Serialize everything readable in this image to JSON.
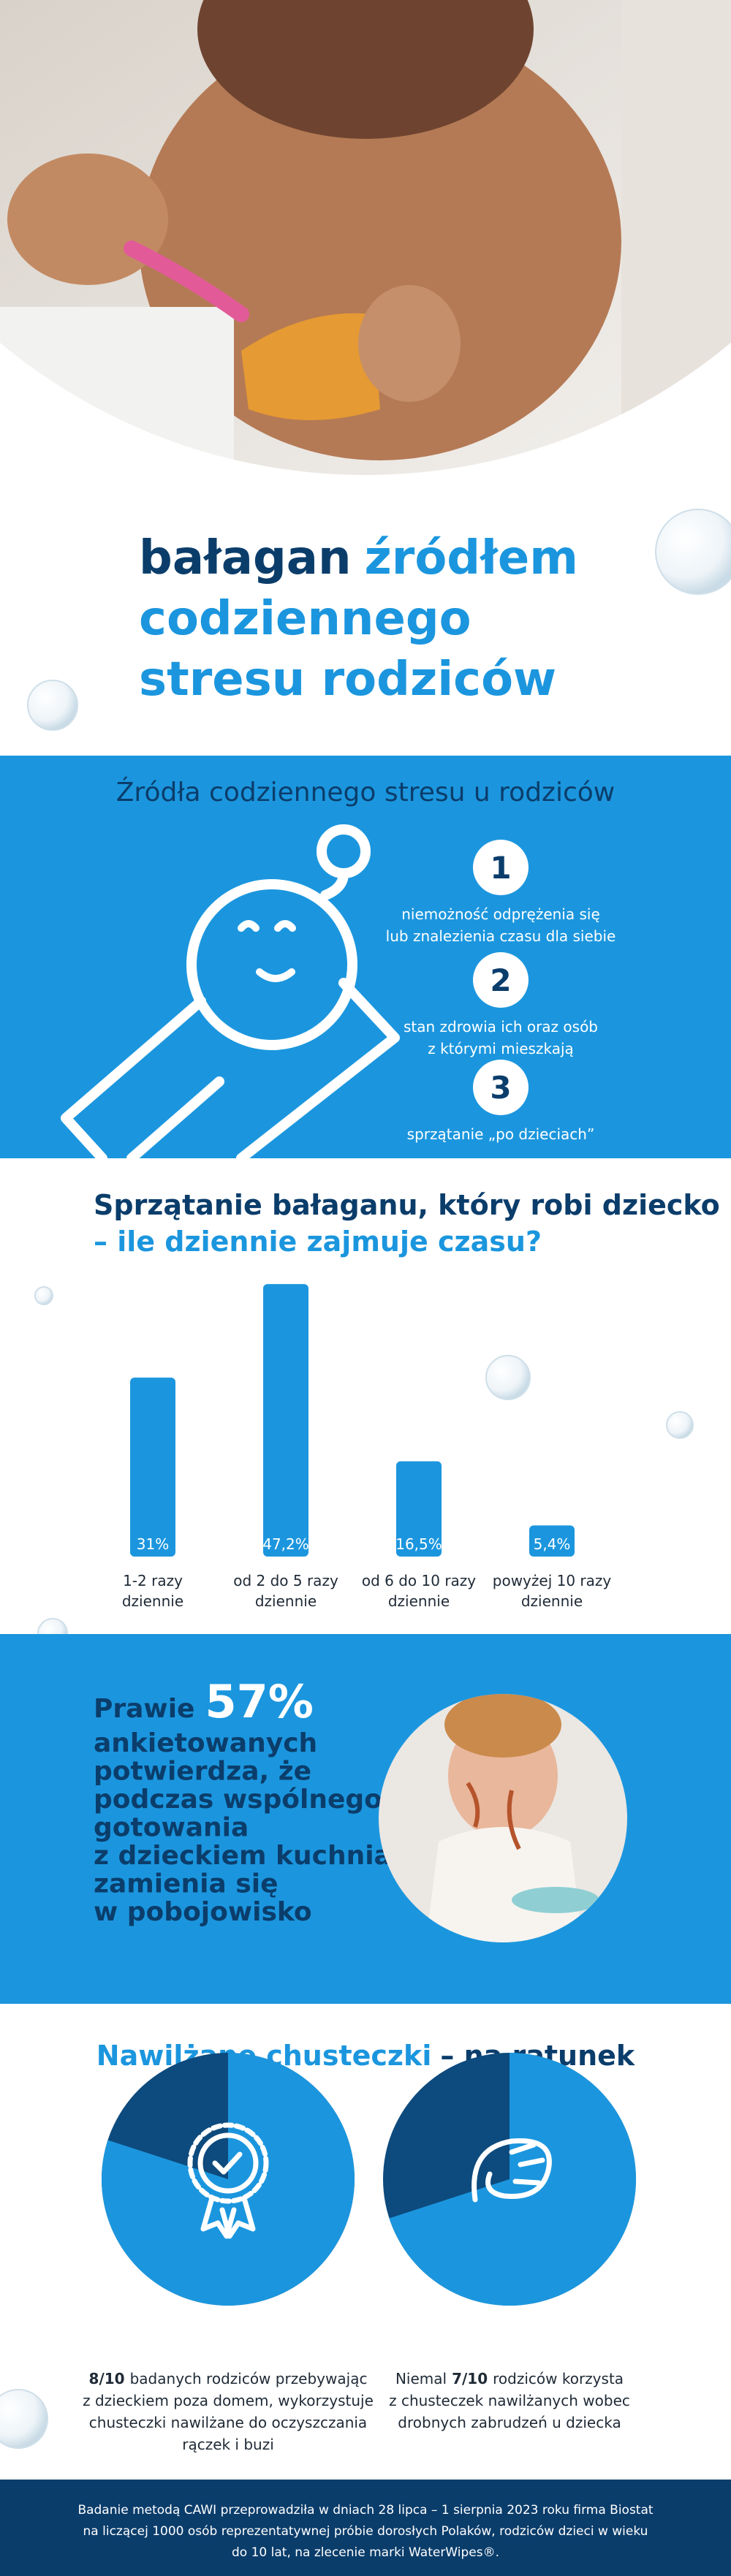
{
  "header": {
    "title": {
      "dark": "bałagan",
      "lines": [
        "źródłem",
        "codziennego",
        "stresu rodziców"
      ]
    }
  },
  "stress_sources": {
    "title": "Źródła codziennego stresu u rodziców",
    "items": [
      {
        "number": 1,
        "lines": [
          "niemożność odprężenia się",
          "lub znalezienia czasu dla siebie"
        ]
      },
      {
        "number": 2,
        "lines": [
          "stan zdrowia ich oraz osób",
          "z którymi mieszkają"
        ]
      },
      {
        "number": 3,
        "lines": [
          "sprzątanie „po dzieciach”"
        ]
      }
    ]
  },
  "cleaning_time": {
    "title_dark": "Sprzątanie bałaganu, który robi dziecko",
    "title_blue": "– ile dziennie zajmuje czasu?",
    "chart": {
      "type": "bar",
      "color": "#1b96de",
      "categories": [
        [
          "1-2 razy",
          "dziennie"
        ],
        [
          "od 2 do 5 razy",
          "dziennie"
        ],
        [
          "od 6 do 10 razy",
          "dziennie"
        ],
        [
          "powyżej 10 razy",
          "dziennie"
        ]
      ],
      "values": [
        31,
        47.2,
        16.5,
        5.4
      ],
      "value_labels": [
        "31%",
        "47,2%",
        "16,5%",
        "5,4%"
      ]
    }
  },
  "survey": {
    "prefix": "Prawie",
    "highlight": "57%",
    "lines": [
      "ankietowanych",
      "potwierdza, że",
      "podczas wspólnego",
      "gotowania",
      "z dzieckiem kuchnia",
      "zamienia się",
      "w pobojowisko"
    ]
  },
  "wipes": {
    "title_blue": "Nawilżane chusteczki",
    "title_dark": "– na ratunek",
    "stats": [
      {
        "type": "pie",
        "value": 0.8,
        "value_label": "8/10",
        "lines": [
          "badanych rodziców przebywając",
          "z dzieckiem poza domem, wykorzystuje",
          "chusteczki nawilżane do oczyszczania",
          "rączek i buzi"
        ]
      },
      {
        "type": "pie",
        "prefix": "Niemal",
        "value": 0.7,
        "value_label": "7/10",
        "lines": [
          "rodziców korzysta",
          "z chusteczek nawilżanych wobec",
          "drobnych zabrudzeń u dziecka"
        ]
      }
    ]
  },
  "footer": {
    "lines": [
      "Badanie metodą CAWI przeprowadziła w dniach 28 lipca – 1 sierpnia 2023 roku firma Biostat",
      "na liczącej 1000 osób reprezentatywnej próbie dorosłych Polaków, rodziców dzieci w wieku",
      "do 10 lat, na zlecenie marki WaterWipes®."
    ]
  }
}
